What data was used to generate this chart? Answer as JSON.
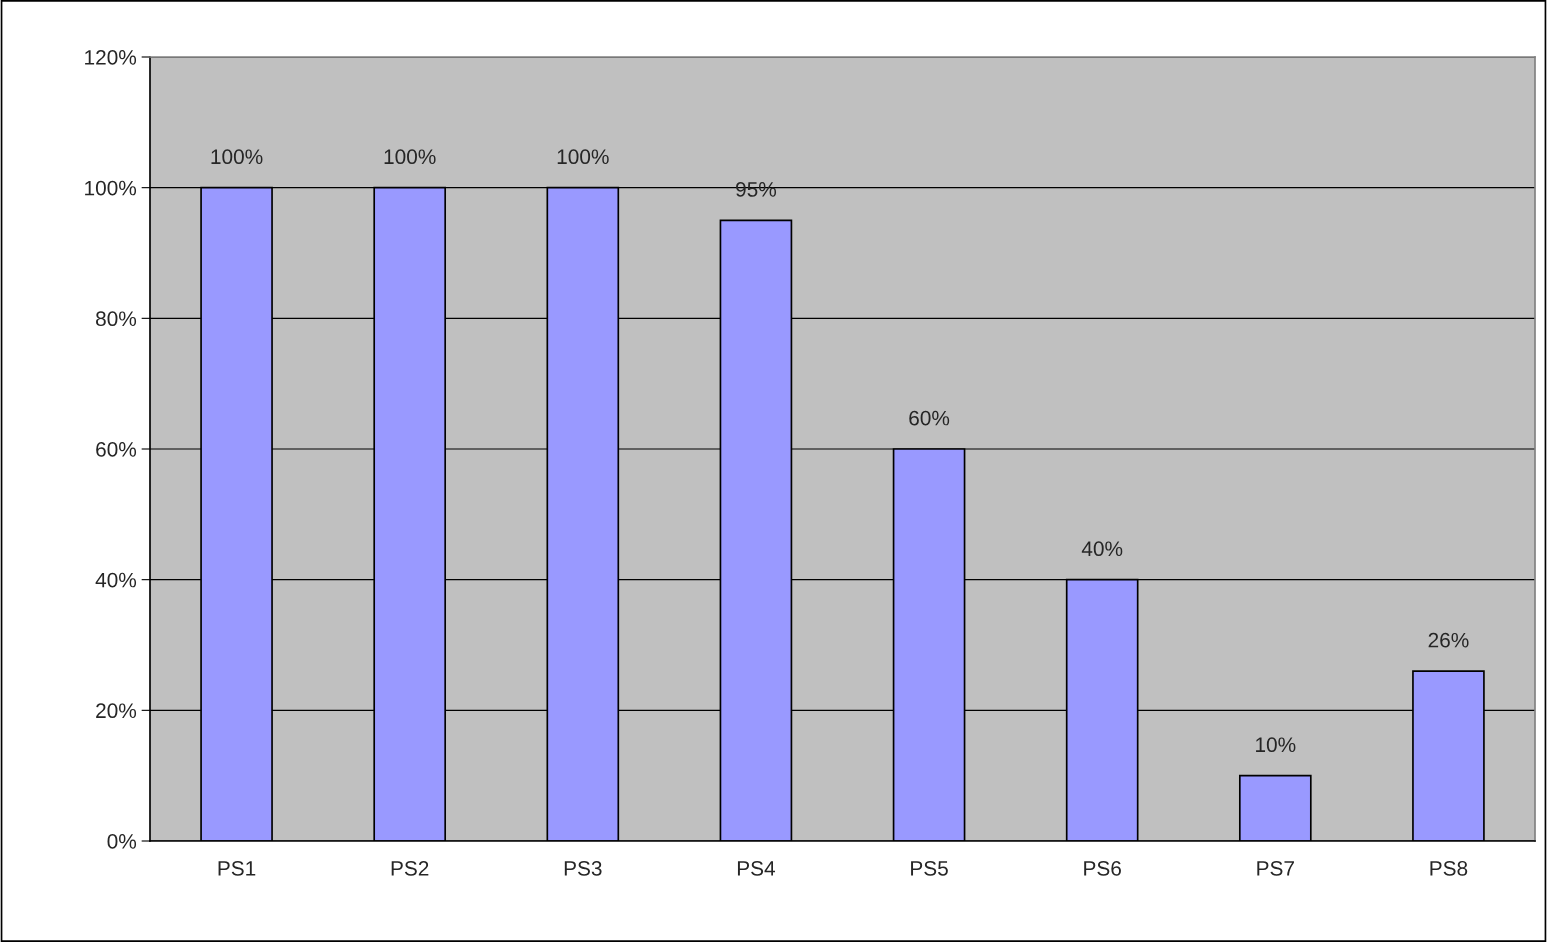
{
  "chart_data": {
    "type": "bar",
    "categories": [
      "PS1",
      "PS2",
      "PS3",
      "PS4",
      "PS5",
      "PS6",
      "PS7",
      "PS8"
    ],
    "values": [
      100,
      100,
      100,
      95,
      60,
      40,
      10,
      26
    ],
    "value_labels": [
      "100%",
      "100%",
      "100%",
      "95%",
      "60%",
      "40%",
      "10%",
      "26%"
    ],
    "color": "#9999ff",
    "ylim": [
      0,
      120
    ],
    "yticks": [
      {
        "value": 0,
        "label": "0%"
      },
      {
        "value": 20,
        "label": "20%"
      },
      {
        "value": 40,
        "label": "40%"
      },
      {
        "value": 60,
        "label": "60%"
      },
      {
        "value": 80,
        "label": "80%"
      },
      {
        "value": 100,
        "label": "100%"
      },
      {
        "value": 120,
        "label": "120%"
      }
    ],
    "grid": "y"
  }
}
